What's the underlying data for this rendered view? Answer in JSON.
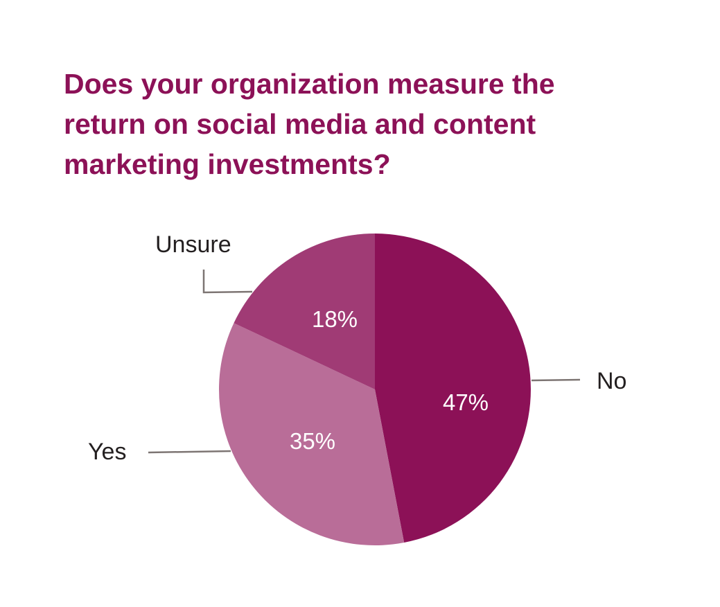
{
  "title_lines": [
    "Does your organization measure the",
    "return on social media and content",
    "marketing investments?"
  ],
  "chart_data": {
    "type": "pie",
    "title": "Does your organization measure the return on social media and content marketing investments?",
    "slices": [
      {
        "label": "No",
        "value": 47,
        "value_label": "47%",
        "color": "#8c1157"
      },
      {
        "label": "Yes",
        "value": 35,
        "value_label": "35%",
        "color": "#b96d98"
      },
      {
        "label": "Unsure",
        "value": 18,
        "value_label": "18%",
        "color": "#a03b75"
      }
    ],
    "start": "12 o'clock",
    "direction": "clockwise",
    "label_color": "#ffffff",
    "leader_color": "#7d7573"
  }
}
